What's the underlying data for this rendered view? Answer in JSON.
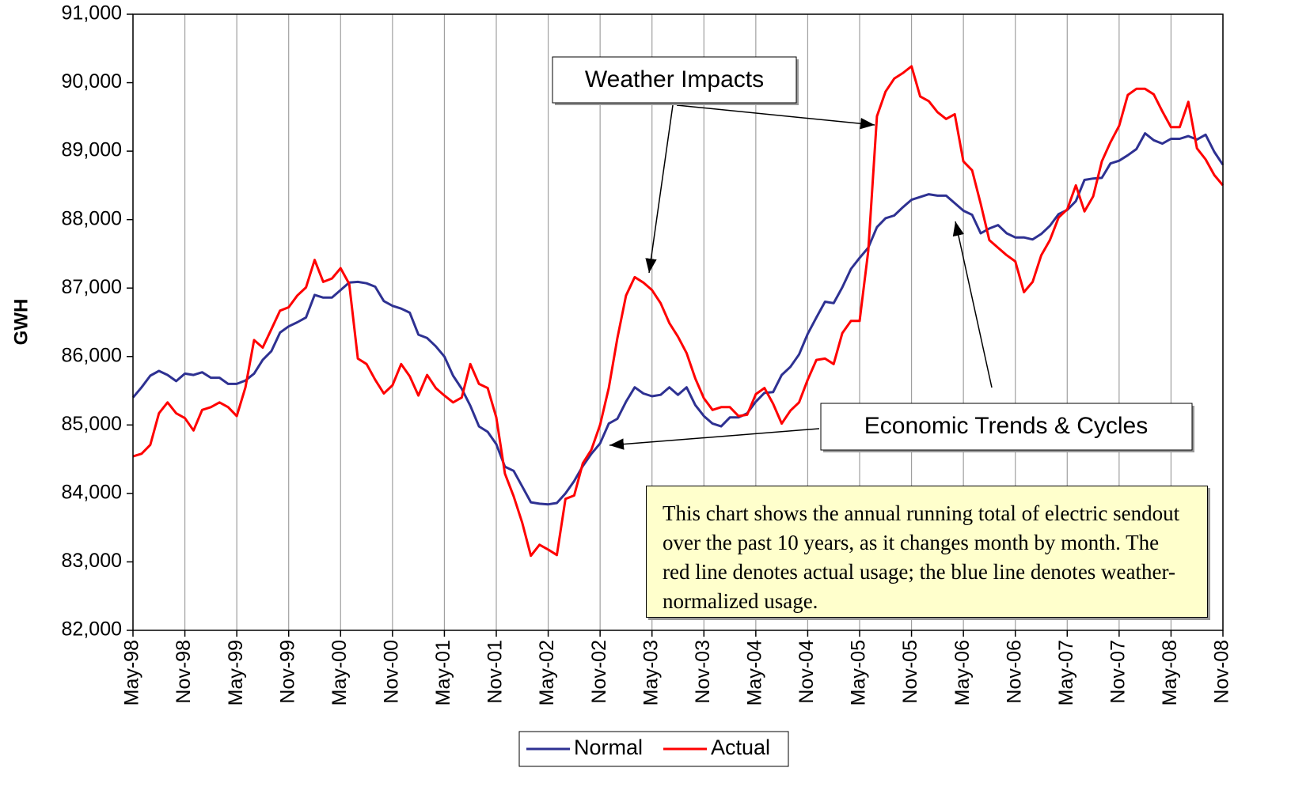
{
  "chart_data": {
    "type": "line",
    "y_label": "GWH",
    "categories": [
      "May-98",
      null,
      null,
      null,
      null,
      null,
      "Nov-98",
      null,
      null,
      null,
      null,
      null,
      "May-99",
      null,
      null,
      null,
      null,
      null,
      "Nov-99",
      null,
      null,
      null,
      null,
      null,
      "May-00",
      null,
      null,
      null,
      null,
      null,
      "Nov-00",
      null,
      null,
      null,
      null,
      null,
      "May-01",
      null,
      null,
      null,
      null,
      null,
      "Nov-01",
      null,
      null,
      null,
      null,
      null,
      "May-02",
      null,
      null,
      null,
      null,
      null,
      "Nov-02",
      null,
      null,
      null,
      null,
      null,
      "May-03",
      null,
      null,
      null,
      null,
      null,
      "Nov-03",
      null,
      null,
      null,
      null,
      null,
      "May-04",
      null,
      null,
      null,
      null,
      null,
      "Nov-04",
      null,
      null,
      null,
      null,
      null,
      "May-05",
      null,
      null,
      null,
      null,
      null,
      "Nov-05",
      null,
      null,
      null,
      null,
      null,
      "May-06",
      null,
      null,
      null,
      null,
      null,
      "Nov-06",
      null,
      null,
      null,
      null,
      null,
      "May-07",
      null,
      null,
      null,
      null,
      null,
      "Nov-07",
      null,
      null,
      null,
      null,
      null,
      "May-08",
      null,
      null,
      null,
      null,
      null,
      "Nov-08"
    ],
    "series": [
      {
        "name": "Normal",
        "color": "#2e3192",
        "values": [
          85400,
          85550,
          85720,
          85790,
          85730,
          85640,
          85750,
          85730,
          85770,
          85690,
          85690,
          85600,
          85600,
          85650,
          85750,
          85950,
          86080,
          86350,
          86440,
          86500,
          86570,
          86900,
          86860,
          86860,
          86970,
          87080,
          87090,
          87070,
          87020,
          86810,
          86740,
          86700,
          86640,
          86320,
          86270,
          86150,
          86000,
          85720,
          85530,
          85280,
          84980,
          84900,
          84720,
          84390,
          84330,
          84100,
          83870,
          83850,
          83840,
          83860,
          84000,
          84180,
          84400,
          84580,
          84730,
          85020,
          85090,
          85340,
          85550,
          85460,
          85420,
          85440,
          85550,
          85440,
          85550,
          85290,
          85130,
          85020,
          84980,
          85110,
          85110,
          85170,
          85340,
          85470,
          85480,
          85730,
          85850,
          86030,
          86330,
          86570,
          86800,
          86780,
          87010,
          87280,
          87440,
          87590,
          87890,
          88020,
          88060,
          88180,
          88290,
          88330,
          88370,
          88350,
          88350,
          88240,
          88130,
          88070,
          87800,
          87870,
          87920,
          87800,
          87740,
          87740,
          87710,
          87790,
          87910,
          88080,
          88140,
          88270,
          88580,
          88600,
          88610,
          88820,
          88860,
          88940,
          89030,
          89260,
          89160,
          89110,
          89180,
          89180,
          89220,
          89170,
          89240,
          88990,
          88800
        ]
      },
      {
        "name": "Actual",
        "color": "#ff0000",
        "values": [
          84540,
          84580,
          84710,
          85170,
          85330,
          85170,
          85100,
          84920,
          85220,
          85260,
          85330,
          85260,
          85130,
          85550,
          86240,
          86130,
          86400,
          86670,
          86720,
          86890,
          87010,
          87410,
          87090,
          87140,
          87290,
          87060,
          85970,
          85890,
          85660,
          85460,
          85580,
          85890,
          85710,
          85430,
          85730,
          85540,
          85430,
          85330,
          85400,
          85890,
          85600,
          85540,
          85110,
          84290,
          83960,
          83570,
          83090,
          83250,
          83180,
          83100,
          83920,
          83970,
          84440,
          84640,
          85000,
          85540,
          86270,
          86890,
          87160,
          87080,
          86970,
          86780,
          86490,
          86290,
          86050,
          85680,
          85390,
          85220,
          85260,
          85260,
          85130,
          85150,
          85450,
          85540,
          85310,
          85020,
          85210,
          85330,
          85660,
          85950,
          85970,
          85890,
          86340,
          86520,
          86520,
          87540,
          89510,
          89870,
          90060,
          90140,
          90240,
          89800,
          89730,
          89570,
          89470,
          89540,
          88850,
          88720,
          88230,
          87700,
          87590,
          87480,
          87390,
          86940,
          87090,
          87480,
          87700,
          88030,
          88150,
          88500,
          88120,
          88340,
          88850,
          89130,
          89370,
          89820,
          89910,
          89910,
          89830,
          89580,
          89350,
          89350,
          89720,
          89040,
          88880,
          88650,
          88500
        ]
      }
    ],
    "ylim": [
      82000,
      91000
    ],
    "yticks": [
      {
        "value": 82000,
        "label": "82,000"
      },
      {
        "value": 83000,
        "label": "83,000"
      },
      {
        "value": 84000,
        "label": "84,000"
      },
      {
        "value": 85000,
        "label": "85,000"
      },
      {
        "value": 86000,
        "label": "86,000"
      },
      {
        "value": 87000,
        "label": "87,000"
      },
      {
        "value": 88000,
        "label": "88,000"
      },
      {
        "value": 89000,
        "label": "89,000"
      },
      {
        "value": 90000,
        "label": "90,000"
      },
      {
        "value": 91000,
        "label": "91,000"
      }
    ],
    "grid": true,
    "annotations": [
      "Weather Impacts",
      "Economic Trends & Cycles"
    ],
    "note": "This chart shows the annual running total of electric sendout over the past 10 years, as it changes month by month. The red line denotes actual usage; the blue line denotes weather-normalized usage."
  }
}
